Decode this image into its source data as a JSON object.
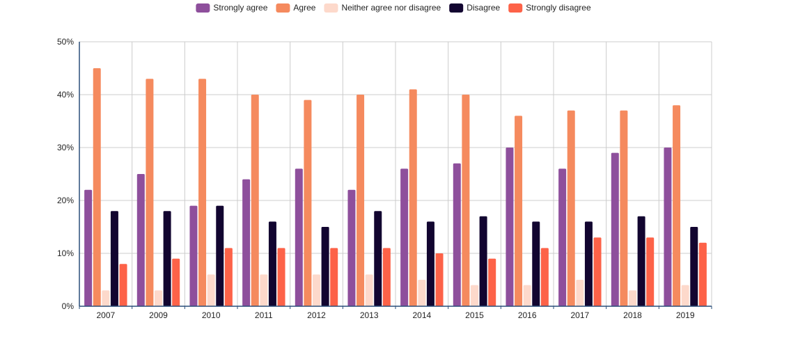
{
  "chart_data": {
    "type": "bar",
    "title": "",
    "xlabel": "",
    "ylabel": "",
    "ylim": [
      0,
      50
    ],
    "y_ticks": [
      "0%",
      "10%",
      "20%",
      "30%",
      "40%",
      "50%"
    ],
    "y_tick_values": [
      0,
      10,
      20,
      30,
      40,
      50
    ],
    "grid": true,
    "legend_position": "top-center",
    "categories": [
      "2007",
      "2009",
      "2010",
      "2011",
      "2012",
      "2013",
      "2014",
      "2015",
      "2016",
      "2017",
      "2018",
      "2019"
    ],
    "series": [
      {
        "name": "Strongly agree",
        "color": "#8e4f9c",
        "values": [
          22,
          25,
          19,
          24,
          26,
          22,
          26,
          27,
          30,
          26,
          29,
          30
        ]
      },
      {
        "name": "Agree",
        "color": "#f58a5e",
        "values": [
          45,
          43,
          43,
          40,
          39,
          40,
          41,
          40,
          36,
          37,
          37,
          38
        ]
      },
      {
        "name": "Neither agree nor disagree",
        "color": "#fdd9cb",
        "values": [
          3,
          3,
          6,
          6,
          6,
          6,
          5,
          4,
          4,
          5,
          3,
          4
        ]
      },
      {
        "name": "Disagree",
        "color": "#120530",
        "values": [
          18,
          18,
          19,
          16,
          15,
          18,
          16,
          17,
          16,
          16,
          17,
          15
        ]
      },
      {
        "name": "Strongly disagree",
        "color": "#fd6248",
        "values": [
          8,
          9,
          11,
          11,
          11,
          11,
          10,
          9,
          11,
          13,
          13,
          12
        ]
      }
    ]
  }
}
